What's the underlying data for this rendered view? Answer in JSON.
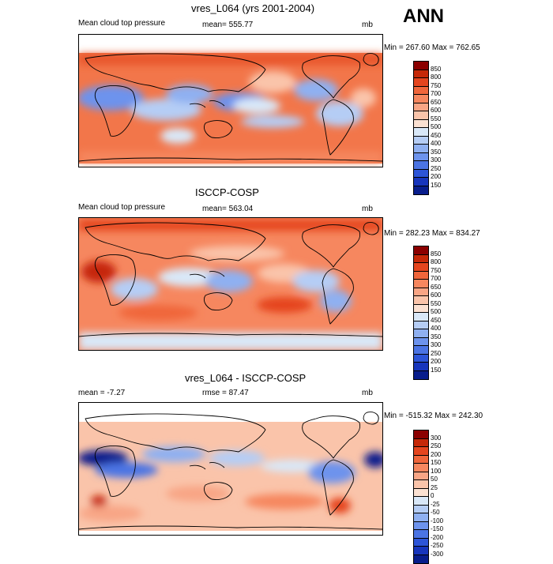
{
  "season": "ANN",
  "panels": [
    {
      "title": "vres_L064 (yrs 2001-2004)",
      "left_label": "Mean cloud top pressure",
      "center_label": "mean= 555.77",
      "units": "mb",
      "minmax": "Min = 267.60 Max = 762.65"
    },
    {
      "title": "ISCCP-COSP",
      "left_label": "Mean cloud top pressure",
      "center_label": "mean= 563.04",
      "units": "mb",
      "minmax": "Min = 282.23 Max = 834.27"
    },
    {
      "title": "vres_L064 - ISCCP-COSP",
      "left_label": "mean =  -7.27",
      "center_label": "rmse =  87.47",
      "units": "mb",
      "minmax": "Min = -515.32 Max = 242.30"
    }
  ],
  "colorbar_abs": {
    "labels": [
      "850",
      "800",
      "750",
      "700",
      "650",
      "600",
      "550",
      "500",
      "450",
      "400",
      "350",
      "300",
      "250",
      "200",
      "150"
    ],
    "colors": [
      "#8b0000",
      "#c62808",
      "#e5451e",
      "#f0663b",
      "#f6875f",
      "#f8a585",
      "#fac4aa",
      "#fbe1d2",
      "#d9e8f8",
      "#b5cdf5",
      "#8fb0f1",
      "#6d93ed",
      "#4b74e4",
      "#2d55d8",
      "#1735bc",
      "#081d8c"
    ]
  },
  "colorbar_diff": {
    "labels": [
      "300",
      "250",
      "200",
      "150",
      "100",
      "50",
      "25",
      "0",
      "-25",
      "-50",
      "-100",
      "-150",
      "-200",
      "-250",
      "-300"
    ],
    "colors": [
      "#8b0000",
      "#c62808",
      "#e5451e",
      "#f0663b",
      "#f6875f",
      "#f8a585",
      "#fac4aa",
      "#fbe1d2",
      "#d9e8f8",
      "#b5cdf5",
      "#8fb0f1",
      "#6d93ed",
      "#4b74e4",
      "#2d55d8",
      "#1735bc",
      "#081d8c"
    ]
  }
}
